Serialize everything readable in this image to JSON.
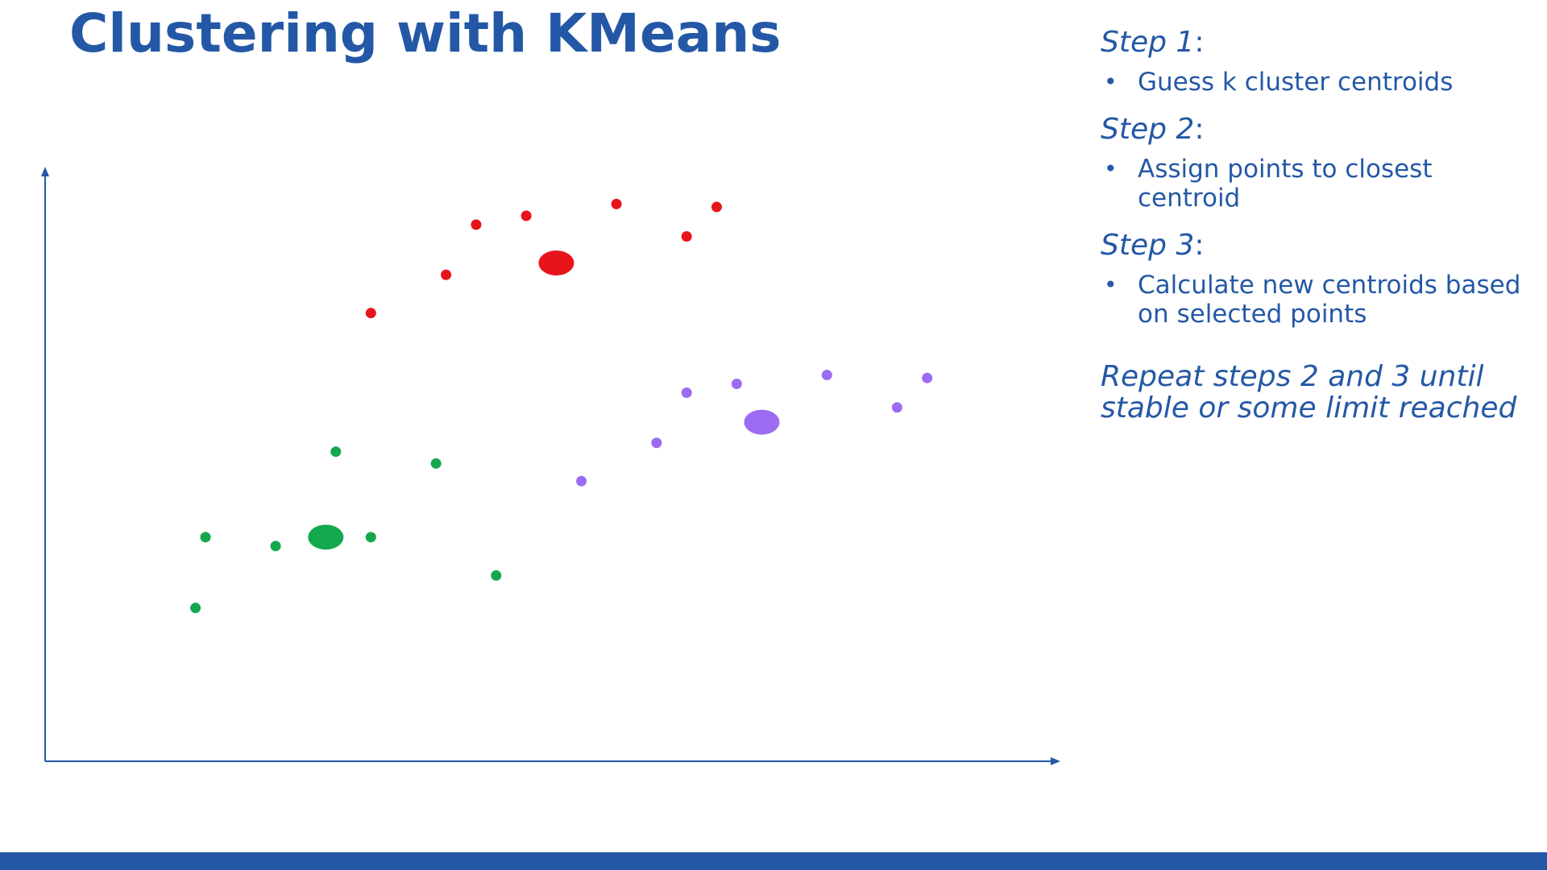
{
  "slide": {
    "title": "Clustering with KMeans"
  },
  "steps": [
    {
      "label": "Step 1",
      "colon": ":",
      "bullets": [
        "Guess k cluster centroids"
      ]
    },
    {
      "label": "Step 2",
      "colon": ":",
      "bullets": [
        "Assign points to closest centroid"
      ]
    },
    {
      "label": "Step 3",
      "colon": ":",
      "bullets": [
        "Calculate new centroids based on selected points"
      ]
    }
  ],
  "bullet_glyph": "•",
  "repeat_note": "Repeat steps 2 and 3 until stable or some limit reached",
  "colors": {
    "accent": "#2458a6",
    "cluster_red": "#e8141c",
    "cluster_purple": "#9b6cf2",
    "cluster_green": "#14a84e"
  },
  "chart_data": {
    "type": "scatter",
    "title": "",
    "xlabel": "",
    "ylabel": "",
    "xlim": [
      0,
      100
    ],
    "ylim": [
      0,
      100
    ],
    "grid": false,
    "axis_ticks": false,
    "series": [
      {
        "color": "#e8141c",
        "points": [
          [
            32.5,
            76
          ],
          [
            40,
            82.5
          ],
          [
            43,
            91
          ],
          [
            48,
            92.5
          ],
          [
            57,
            94.5
          ],
          [
            64,
            89
          ],
          [
            67,
            94
          ]
        ],
        "centroid": [
          51,
          84.5
        ]
      },
      {
        "color": "#9b6cf2",
        "points": [
          [
            53.5,
            47.5
          ],
          [
            61,
            54
          ],
          [
            64,
            62.5
          ],
          [
            69,
            64
          ],
          [
            78,
            65.5
          ],
          [
            85,
            60
          ],
          [
            88,
            65
          ]
        ],
        "centroid": [
          71.5,
          57.5
        ]
      },
      {
        "color": "#14a84e",
        "points": [
          [
            15,
            26
          ],
          [
            16,
            38
          ],
          [
            23,
            36.5
          ],
          [
            29,
            52.5
          ],
          [
            32.5,
            38
          ],
          [
            39,
            50.5
          ],
          [
            45,
            31.5
          ]
        ],
        "centroid": [
          28,
          38
        ]
      }
    ]
  }
}
